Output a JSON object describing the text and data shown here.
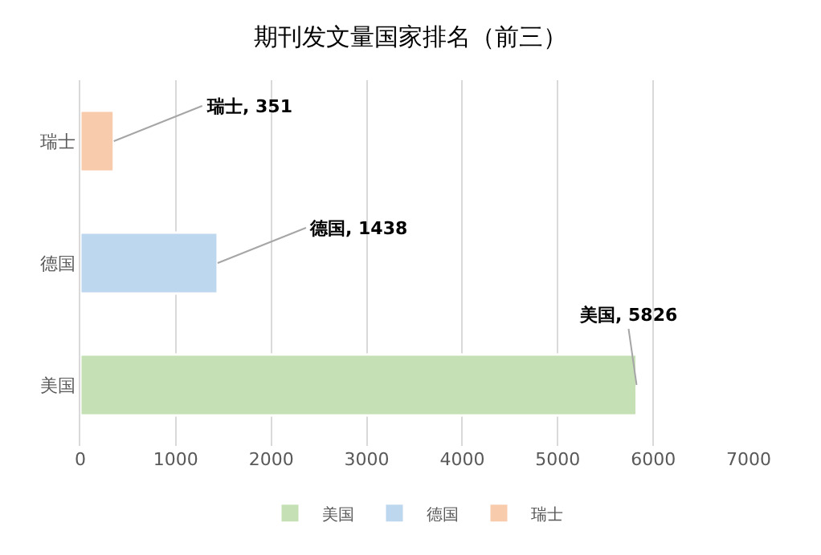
{
  "chart_data": {
    "type": "bar",
    "title": "期刊发文量国家排名（前三）",
    "orientation": "horizontal",
    "stacked": true,
    "categories": [
      "瑞士",
      "德国",
      "美国"
    ],
    "series": [
      {
        "name": "美国",
        "color": "#c5e0b4",
        "values": [
          null,
          null,
          5826
        ],
        "value_labels": [
          null,
          null,
          "美国, 5826"
        ]
      },
      {
        "name": "德国",
        "color": "#bdd7ee",
        "values": [
          null,
          1438,
          null
        ],
        "value_labels": [
          null,
          "德国, 1438",
          null
        ]
      },
      {
        "name": "瑞士",
        "color": "#f8cbad",
        "values": [
          351,
          null,
          null
        ],
        "value_labels": [
          "瑞士, 351",
          null,
          null
        ]
      }
    ],
    "xlim": [
      0,
      7000
    ],
    "xticks": [
      0,
      1000,
      2000,
      3000,
      4000,
      5000,
      6000,
      7000
    ],
    "grid": "x",
    "legend": "bottom"
  }
}
